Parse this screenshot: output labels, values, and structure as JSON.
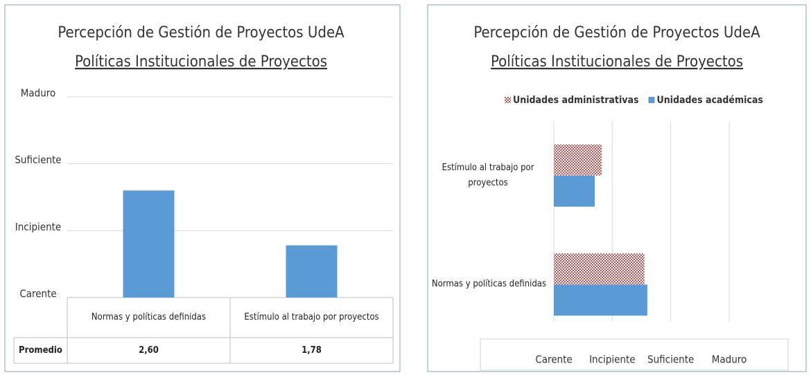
{
  "chart_data": [
    {
      "type": "bar",
      "title": "Percepción de Gestión de Proyectos UdeA",
      "subtitle": "Políticas Institucionales de Proyectos",
      "categories": [
        "Normas y políticas definidas",
        "Estímulo al trabajo por proyectos"
      ],
      "values": [
        2.6,
        1.78
      ],
      "value_labels": [
        "2,60",
        "1,78"
      ],
      "table_row_label": "Promedio",
      "color": "#5b9bd5",
      "ylim": [
        1,
        4
      ],
      "yticks": [
        {
          "value": 1,
          "label": "Carente"
        },
        {
          "value": 2,
          "label": "Incipiente"
        },
        {
          "value": 3,
          "label": "Suficiente"
        },
        {
          "value": 4,
          "label": "Maduro"
        }
      ],
      "grid": true
    },
    {
      "type": "hbar",
      "title": "Percepción de Gestión de Proyectos UdeA",
      "subtitle": "Políticas Institucionales de Proyectos",
      "categories": [
        "Normas y políticas definidas",
        "Estímulo al trabajo por proyectos"
      ],
      "series": [
        {
          "name": "Unidades administrativas",
          "color": "#c0504d",
          "pattern": "checker",
          "values": [
            2.55,
            1.82
          ]
        },
        {
          "name": "Unidades académicas",
          "color": "#5b9bd5",
          "values": [
            2.6,
            1.7
          ]
        }
      ],
      "xlim": [
        1,
        4
      ],
      "xticks": [
        {
          "value": 1,
          "label": "Carente"
        },
        {
          "value": 2,
          "label": "Incipiente"
        },
        {
          "value": 3,
          "label": "Suficiente"
        },
        {
          "value": 4,
          "label": "Maduro"
        }
      ],
      "grid": true,
      "legend": "top"
    }
  ]
}
